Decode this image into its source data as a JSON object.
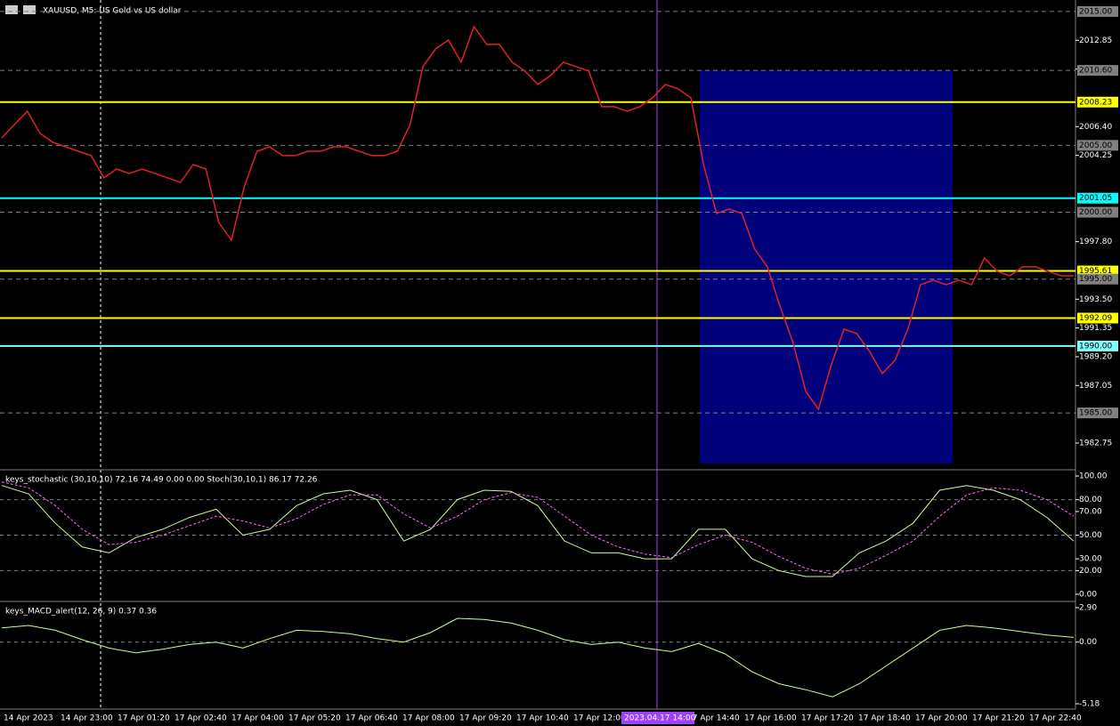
{
  "chart_data": [
    {
      "type": "line",
      "title": "XAUUSD, M5: US Gold vs US dollar",
      "ylim": [
        1980.82,
        2015.86
      ],
      "yticks": [
        {
          "value": 2012.85,
          "label": "2012.85"
        },
        {
          "value": 2010.7,
          "label": "2010.70"
        },
        {
          "value": 2006.4,
          "label": "2006.40"
        },
        {
          "value": 2004.25,
          "label": "2004.25"
        },
        {
          "value": 1997.8,
          "label": "1997.80"
        },
        {
          "value": 1993.5,
          "label": "1993.50"
        },
        {
          "value": 1991.35,
          "label": "1991.35"
        },
        {
          "value": 1989.2,
          "label": "1989.20"
        },
        {
          "value": 1987.05,
          "label": "1987.05"
        },
        {
          "value": 1982.75,
          "label": "1982.75"
        }
      ],
      "levels": [
        {
          "value": 2015,
          "label": "2015.00",
          "color": "#808080",
          "style": "dashed"
        },
        {
          "value": 2010.6,
          "label": "2010.60",
          "color": "#808080",
          "style": "dashed"
        },
        {
          "value": 2008.23,
          "label": "2008.23",
          "color": "#ffff00",
          "style": "solid"
        },
        {
          "value": 2005,
          "label": "2005.00",
          "color": "#808080",
          "style": "dashed"
        },
        {
          "value": 2001.05,
          "label": "2001.05",
          "color": "#00ffff",
          "style": "solid"
        },
        {
          "value": 2000,
          "label": "2000.00",
          "color": "#808080",
          "style": "dashed"
        },
        {
          "value": 1995.61,
          "label": "1995.61",
          "color": "#ffff00",
          "style": "solid"
        },
        {
          "value": 1995,
          "label": "1995.00",
          "color": "#808080",
          "style": "dashed"
        },
        {
          "value": 1992.09,
          "label": "1992.09",
          "color": "#ffff00",
          "style": "solid"
        },
        {
          "value": 1990,
          "label": "1990.00",
          "color": "#80ffff",
          "style": "solid"
        },
        {
          "value": 1985,
          "label": "1985.00",
          "color": "#808080",
          "style": "dashed"
        }
      ],
      "series": [
        {
          "color": "#e0202c",
          "values": [
            2005.56,
            2006.56,
            2007.55,
            2005.89,
            2005.23,
            2004.89,
            2004.56,
            2004.23,
            2002.57,
            2003.23,
            2002.9,
            2003.23,
            2002.9,
            2002.57,
            2002.23,
            2003.56,
            2003.23,
            1999.24,
            1997.91,
            2001.9,
            2004.56,
            2004.89,
            2004.23,
            2004.23,
            2004.56,
            2004.56,
            2004.89,
            2004.89,
            2004.56,
            2004.23,
            2004.23,
            2004.56,
            2006.56,
            2010.88,
            2012.21,
            2012.87,
            2011.21,
            2013.87,
            2012.54,
            2012.54,
            2011.21,
            2010.55,
            2009.55,
            2010.21,
            2011.21,
            2010.88,
            2010.55,
            2007.89,
            2007.89,
            2007.55,
            2007.89,
            2008.55,
            2009.55,
            2009.22,
            2008.55,
            2003.56,
            1999.91,
            2000.24,
            1999.91,
            1997.25,
            1995.92,
            1992.93,
            1990.27,
            1986.61,
            1985.28,
            1988.6,
            1991.26,
            1990.93,
            1989.6,
            1987.94,
            1988.94,
            1991.26,
            1994.59,
            1994.92,
            1994.59,
            1994.92,
            1994.59,
            1996.58,
            1995.59,
            1995.25,
            1995.92,
            1995.92,
            1995.59,
            1995.25,
            1995.25
          ]
        }
      ]
    },
    {
      "type": "line",
      "title": "keys_stochastic (30,10,10) 72.16 74.49 0.00 0.00 Stoch(30,10,1) 86.17 72.26",
      "ylim": [
        -5.3,
        103.8
      ],
      "yticks": [
        {
          "value": 100,
          "label": "100.00"
        },
        {
          "value": 80,
          "label": "80.00"
        },
        {
          "value": 70,
          "label": "70.00"
        },
        {
          "value": 50,
          "label": "50.00"
        },
        {
          "value": 30,
          "label": "30.00"
        },
        {
          "value": 20,
          "label": "20.00"
        },
        {
          "value": 0,
          "label": "0.00"
        }
      ],
      "grid": [
        80,
        50,
        20
      ],
      "series": [
        {
          "color": "#ccff99",
          "values": [
            92,
            85,
            60,
            40,
            35,
            48,
            55,
            65,
            72,
            50,
            55,
            75,
            85,
            88,
            80,
            45,
            55,
            80,
            88,
            87,
            75,
            45,
            35,
            35,
            30,
            30,
            55,
            55,
            30,
            20,
            15,
            15,
            35,
            45,
            60,
            88,
            92,
            88,
            80,
            65,
            45
          ]
        },
        {
          "color": "#ff66ff",
          "values": [
            95,
            90,
            75,
            55,
            42,
            44,
            50,
            58,
            66,
            62,
            56,
            64,
            76,
            84,
            84,
            68,
            56,
            66,
            80,
            86,
            82,
            66,
            50,
            40,
            34,
            31,
            42,
            50,
            44,
            32,
            22,
            17,
            22,
            33,
            45,
            66,
            84,
            90,
            88,
            80,
            66
          ]
        }
      ]
    },
    {
      "type": "line",
      "title": "keys_MACD_alert(12, 26, 9) 0.37 0.36",
      "ylim": [
        -5.63,
        3.27
      ],
      "yticks": [
        {
          "value": 2.9,
          "label": "2.90"
        },
        {
          "value": 0,
          "label": "0.00"
        },
        {
          "value": -5.18,
          "label": "-5.18"
        }
      ],
      "grid": [
        0
      ],
      "series": [
        {
          "color": "#ccff99",
          "values": [
            1.2,
            1.4,
            1.0,
            0.2,
            -0.5,
            -0.9,
            -0.6,
            -0.2,
            0.0,
            -0.5,
            0.3,
            1.0,
            0.9,
            0.7,
            0.3,
            0.0,
            0.8,
            2.0,
            1.9,
            1.6,
            1.0,
            0.2,
            -0.2,
            0.0,
            -0.5,
            -0.8,
            -0.1,
            -1.0,
            -2.5,
            -3.5,
            -4.0,
            -4.6,
            -3.5,
            -2.0,
            -0.5,
            1.0,
            1.4,
            1.2,
            0.9,
            0.6,
            0.4
          ]
        }
      ]
    }
  ],
  "time_axis": {
    "labels": [
      "14 Apr 2023",
      "14 Apr 23:00",
      "17 Apr 01:20",
      "17 Apr 02:40",
      "17 Apr 04:00",
      "17 Apr 05:20",
      "17 Apr 06:40",
      "17 Apr 08:00",
      "17 Apr 09:20",
      "17 Apr 10:40",
      "17 Apr 12:00",
      null,
      "17 Apr 14:40",
      "17 Apr 16:00",
      "17 Apr 17:20",
      "17 Apr 18:40",
      "17 Apr 20:00",
      "17 Apr 21:20",
      "17 Apr 22:40"
    ],
    "cursor": "2023.04.17 14:00"
  }
}
